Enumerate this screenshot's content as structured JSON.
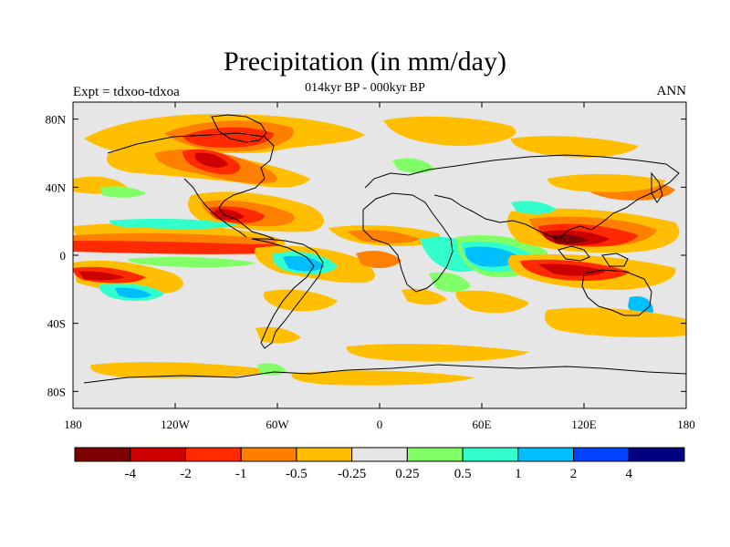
{
  "title": "Precipitation (in mm/day)",
  "subtitle": "014kyr BP - 000kyr BP",
  "left_label": "Expt = tdxoo-tdxoa",
  "right_label": "ANN",
  "map": {
    "projection": "cylindrical-equidistant",
    "lon_range": [
      -180,
      180
    ],
    "lat_range": [
      -90,
      90
    ],
    "background_color": "#e6e6e6",
    "lon_ticks": [
      {
        "value": -180,
        "label": "180"
      },
      {
        "value": -120,
        "label": "120W"
      },
      {
        "value": -60,
        "label": "60W"
      },
      {
        "value": 0,
        "label": "0"
      },
      {
        "value": 60,
        "label": "60E"
      },
      {
        "value": 120,
        "label": "120E"
      },
      {
        "value": 180,
        "label": "180"
      }
    ],
    "lat_ticks": [
      {
        "value": 80,
        "label": "80N"
      },
      {
        "value": 40,
        "label": "40N"
      },
      {
        "value": 0,
        "label": "0"
      },
      {
        "value": -40,
        "label": "40S"
      },
      {
        "value": -80,
        "label": "80S"
      }
    ]
  },
  "colorbar": {
    "colors": [
      "#7f0000",
      "#cc0000",
      "#ff2a00",
      "#ff7f00",
      "#ffbf00",
      "#e6e6e6",
      "#80ff66",
      "#33ffcc",
      "#00bfff",
      "#0044ff",
      "#000080"
    ],
    "labels": [
      "-4",
      "-2",
      "-1",
      "-0.5",
      "-0.25",
      "0.25",
      "0.5",
      "1",
      "2",
      "4"
    ]
  }
}
